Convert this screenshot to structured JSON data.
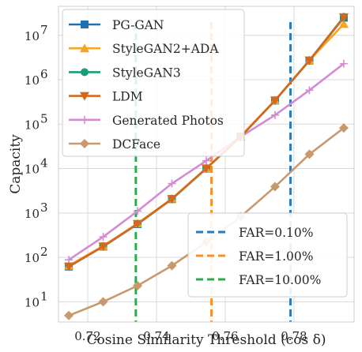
{
  "chart_data": {
    "type": "line",
    "xlabel": "Cosine Similarity Threshold (cos δ)",
    "ylabel": "Capacity",
    "y_scale": "log",
    "xlim": [
      0.7115,
      0.7975
    ],
    "ylim": [
      3.5,
      45000000
    ],
    "grid": true,
    "x": [
      0.7145,
      0.7245,
      0.7345,
      0.7445,
      0.7545,
      0.7645,
      0.7745,
      0.7845,
      0.7945
    ],
    "x_ticks": [
      {
        "value": 0.72,
        "label": "0.72"
      },
      {
        "value": 0.74,
        "label": "0.74"
      },
      {
        "value": 0.76,
        "label": "0.76"
      },
      {
        "value": 0.78,
        "label": "0.78"
      }
    ],
    "y_ticks": [
      {
        "value": 10,
        "base": "10",
        "exp": "1"
      },
      {
        "value": 100,
        "base": "10",
        "exp": "2"
      },
      {
        "value": 1000,
        "base": "10",
        "exp": "3"
      },
      {
        "value": 10000,
        "base": "10",
        "exp": "4"
      },
      {
        "value": 100000,
        "base": "10",
        "exp": "5"
      },
      {
        "value": 1000000,
        "base": "10",
        "exp": "6"
      },
      {
        "value": 10000000,
        "base": "10",
        "exp": "7"
      }
    ],
    "series": [
      {
        "name": "PG-GAN",
        "color": "#2070b4",
        "marker": "square",
        "values": [
          62,
          175,
          560,
          2050,
          10000,
          52000,
          340000,
          2700000,
          25000000
        ]
      },
      {
        "name": "StyleGAN2+ADA",
        "color": "#f5a623",
        "marker": "triangle-up",
        "values": [
          65,
          180,
          580,
          2100,
          10200,
          53000,
          345000,
          2750000,
          18000000
        ]
      },
      {
        "name": "StyleGAN3",
        "color": "#1a9e77",
        "marker": "circle",
        "values": [
          63,
          178,
          570,
          2080,
          10100,
          52500,
          342000,
          2720000,
          26000000
        ]
      },
      {
        "name": "LDM",
        "color": "#d2691e",
        "marker": "triangle-down",
        "values": [
          62,
          176,
          565,
          2060,
          10050,
          52200,
          341000,
          2710000,
          25500000
        ]
      },
      {
        "name": "Generated Photos",
        "color": "#d38bd1",
        "marker": "plus",
        "values": [
          88,
          290,
          1100,
          4600,
          15000,
          52000,
          160000,
          580000,
          2300000
        ]
      },
      {
        "name": "DCFace",
        "color": "#c8996d",
        "marker": "diamond",
        "values": [
          4.9,
          10,
          23,
          65,
          220,
          820,
          3900,
          21000,
          82000
        ]
      }
    ],
    "vlines": [
      {
        "name": "FAR=0.10%",
        "x": 0.779,
        "color": "#2b7bba"
      },
      {
        "name": "FAR=1.00%",
        "x": 0.756,
        "color": "#f5922f"
      },
      {
        "name": "FAR=10.00%",
        "x": 0.734,
        "color": "#2fa84f"
      }
    ],
    "legend_series_position": "upper-left",
    "legend_vlines_position": "lower-right"
  }
}
